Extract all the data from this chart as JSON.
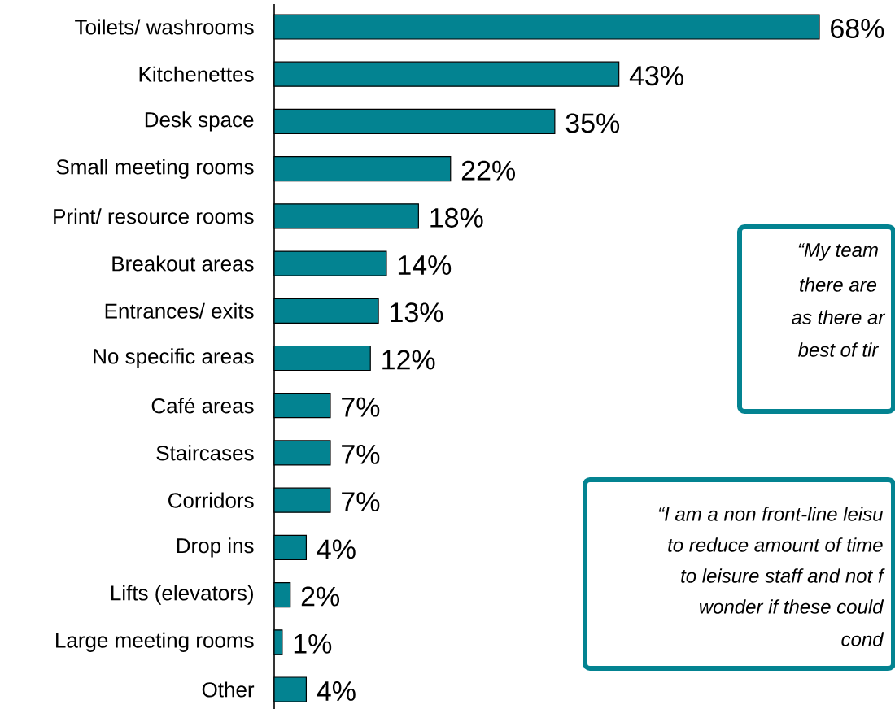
{
  "chart_data": {
    "type": "bar",
    "orientation": "horizontal",
    "categories": [
      "Toilets/ washrooms",
      "Kitchenettes",
      "Desk space",
      "Small meeting rooms",
      "Print/ resource rooms",
      "Breakout areas",
      "Entrances/ exits",
      "No specific areas",
      "Café areas",
      "Staircases",
      "Corridors",
      "Drop ins",
      "Lifts (elevators)",
      "Large meeting rooms",
      "Other"
    ],
    "values": [
      68,
      43,
      35,
      22,
      18,
      14,
      13,
      12,
      7,
      7,
      7,
      4,
      2,
      1,
      4
    ],
    "value_labels": [
      "68%",
      "43%",
      "35%",
      "22%",
      "18%",
      "14%",
      "13%",
      "12%",
      "7%",
      "7%",
      "7%",
      "4%",
      "2%",
      "1%",
      "4%"
    ],
    "color": "#038391",
    "annotations": [
      "“My team",
      "there are",
      "as there ar",
      "best of tir",
      "“I am a non front-line leisu",
      "to reduce amount of time",
      "to leisure staff and not f",
      "wonder if these could",
      "cond"
    ]
  }
}
